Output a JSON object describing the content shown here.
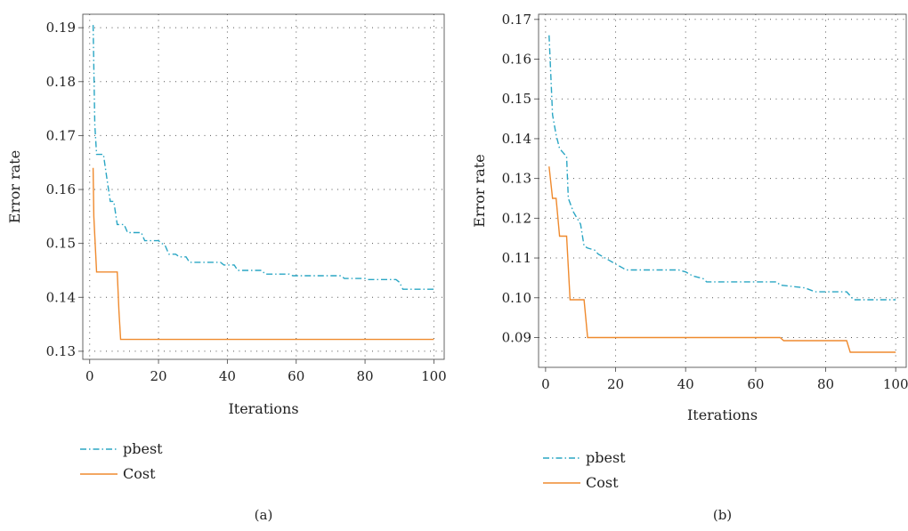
{
  "chart_data": [
    {
      "type": "line",
      "panel_label": "(a)",
      "xlabel": "Iterations",
      "ylabel": "Error rate",
      "xlim": [
        -2,
        103
      ],
      "ylim": [
        0.1285,
        0.1925
      ],
      "xticks": [
        0,
        20,
        40,
        60,
        80,
        100
      ],
      "yticks": [
        0.13,
        0.14,
        0.15,
        0.16,
        0.17,
        0.18,
        0.19
      ],
      "ytick_labels": [
        "0.13",
        "0.14",
        "0.15",
        "0.16",
        "0.17",
        "0.18",
        "0.19"
      ],
      "grid": true,
      "legend_position": "below",
      "series": [
        {
          "name": "pbest",
          "style": "dashdot",
          "color": "#2aa6c4",
          "points": [
            [
              1,
              0.1905
            ],
            [
              1.5,
              0.172
            ],
            [
              2,
              0.1665
            ],
            [
              4,
              0.1665
            ],
            [
              5,
              0.162
            ],
            [
              6,
              0.1578
            ],
            [
              7,
              0.1578
            ],
            [
              8,
              0.1535
            ],
            [
              10,
              0.1535
            ],
            [
              11,
              0.152
            ],
            [
              15,
              0.152
            ],
            [
              16,
              0.1505
            ],
            [
              20,
              0.1505
            ],
            [
              22,
              0.1495
            ],
            [
              23,
              0.148
            ],
            [
              25,
              0.148
            ],
            [
              26,
              0.1475
            ],
            [
              28,
              0.1475
            ],
            [
              29,
              0.1465
            ],
            [
              38,
              0.1465
            ],
            [
              39,
              0.146
            ],
            [
              42,
              0.146
            ],
            [
              43,
              0.145
            ],
            [
              50,
              0.145
            ],
            [
              51,
              0.1443
            ],
            [
              58,
              0.1443
            ],
            [
              59,
              0.144
            ],
            [
              73,
              0.144
            ],
            [
              74,
              0.1435
            ],
            [
              80,
              0.1435
            ],
            [
              81,
              0.1433
            ],
            [
              89,
              0.1433
            ],
            [
              90,
              0.1428
            ],
            [
              91,
              0.1415
            ],
            [
              100,
              0.1415
            ]
          ]
        },
        {
          "name": "Cost",
          "style": "solid",
          "color": "#ef8a2e",
          "points": [
            [
              1,
              0.164
            ],
            [
              1.2,
              0.155
            ],
            [
              2,
              0.1447
            ],
            [
              8,
              0.1447
            ],
            [
              8.5,
              0.1375
            ],
            [
              9,
              0.1322
            ],
            [
              100,
              0.1322
            ]
          ]
        }
      ]
    },
    {
      "type": "line",
      "panel_label": "(b)",
      "xlabel": "Iterations",
      "ylabel": "Error rate",
      "xlim": [
        -2,
        103
      ],
      "ylim": [
        0.0825,
        0.1713
      ],
      "xticks": [
        0,
        20,
        40,
        60,
        80,
        100
      ],
      "yticks": [
        0.09,
        0.1,
        0.11,
        0.12,
        0.13,
        0.14,
        0.15,
        0.16,
        0.17
      ],
      "ytick_labels": [
        "0.09",
        "0.10",
        "0.11",
        "0.12",
        "0.13",
        "0.14",
        "0.15",
        "0.16",
        "0.17"
      ],
      "grid": true,
      "legend_position": "below",
      "series": [
        {
          "name": "pbest",
          "style": "dashdot",
          "color": "#2aa6c4",
          "points": [
            [
              1,
              0.166
            ],
            [
              2,
              0.146
            ],
            [
              3,
              0.141
            ],
            [
              4,
              0.1375
            ],
            [
              5,
              0.1365
            ],
            [
              6,
              0.1355
            ],
            [
              6.5,
              0.125
            ],
            [
              8,
              0.1215
            ],
            [
              10,
              0.1185
            ],
            [
              11,
              0.113
            ],
            [
              12,
              0.1125
            ],
            [
              14,
              0.112
            ],
            [
              15,
              0.111
            ],
            [
              18,
              0.1095
            ],
            [
              20,
              0.1085
            ],
            [
              22,
              0.1075
            ],
            [
              23,
              0.107
            ],
            [
              38,
              0.107
            ],
            [
              40,
              0.1065
            ],
            [
              42,
              0.1055
            ],
            [
              45,
              0.1048
            ],
            [
              46,
              0.104
            ],
            [
              66,
              0.104
            ],
            [
              67,
              0.1032
            ],
            [
              74,
              0.1025
            ],
            [
              77,
              0.1015
            ],
            [
              86,
              0.1015
            ],
            [
              87,
              0.1005
            ],
            [
              88,
              0.0995
            ],
            [
              100,
              0.0995
            ]
          ]
        },
        {
          "name": "Cost",
          "style": "solid",
          "color": "#ef8a2e",
          "points": [
            [
              1,
              0.133
            ],
            [
              2,
              0.125
            ],
            [
              3,
              0.125
            ],
            [
              4,
              0.1155
            ],
            [
              6,
              0.1155
            ],
            [
              7,
              0.0995
            ],
            [
              11,
              0.0995
            ],
            [
              12,
              0.09
            ],
            [
              67,
              0.09
            ],
            [
              68,
              0.0892
            ],
            [
              86,
              0.0892
            ],
            [
              87,
              0.0863
            ],
            [
              100,
              0.0863
            ]
          ]
        }
      ]
    }
  ]
}
